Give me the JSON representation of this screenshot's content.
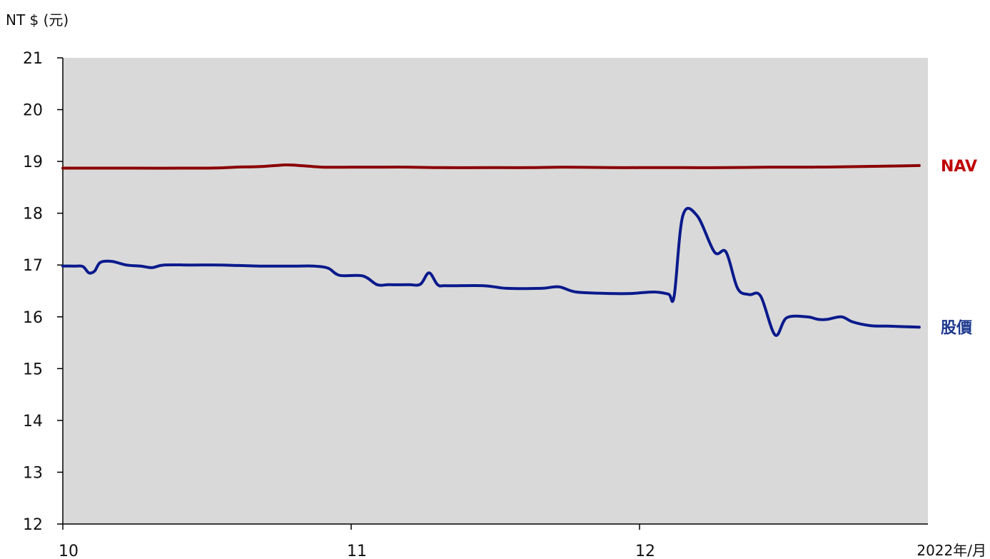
{
  "chart_data": {
    "type": "line",
    "y_unit_label": "NT $ (元)",
    "x_unit_label": "2022年/月",
    "ylim": [
      12,
      21
    ],
    "y_ticks": [
      "21",
      "20",
      "19",
      "18",
      "17",
      "16",
      "15",
      "14",
      "13",
      "12"
    ],
    "x_ticks": [
      {
        "label": "10",
        "month_pos": 0
      },
      {
        "label": "11",
        "month_pos": 1
      },
      {
        "label": "12",
        "month_pos": 2
      }
    ],
    "x_range": [
      0,
      3
    ],
    "grid": false,
    "plot_background": "#d9d9d9",
    "series": [
      {
        "name": "NAV",
        "color": "#8b0000",
        "label_color": "#c00000",
        "points": [
          [
            0.0,
            18.87
          ],
          [
            0.25,
            18.87
          ],
          [
            0.5,
            18.87
          ],
          [
            0.6,
            18.89
          ],
          [
            0.68,
            18.9
          ],
          [
            0.76,
            18.93
          ],
          [
            0.8,
            18.93
          ],
          [
            0.9,
            18.89
          ],
          [
            1.0,
            18.89
          ],
          [
            1.12,
            18.89
          ],
          [
            1.2,
            18.89
          ],
          [
            1.3,
            18.88
          ],
          [
            1.5,
            18.88
          ],
          [
            1.62,
            18.88
          ],
          [
            1.74,
            18.89
          ],
          [
            1.9,
            18.88
          ],
          [
            2.0,
            18.88
          ],
          [
            2.15,
            18.88
          ],
          [
            2.3,
            18.88
          ],
          [
            2.45,
            18.89
          ],
          [
            2.6,
            18.89
          ],
          [
            2.75,
            18.9
          ],
          [
            2.97,
            18.92
          ]
        ]
      },
      {
        "name": "股價",
        "color": "#0a1a8c",
        "label_color": "#1f3a8f",
        "points": [
          [
            0.0,
            16.98
          ],
          [
            0.04,
            16.98
          ],
          [
            0.07,
            16.97
          ],
          [
            0.09,
            16.85
          ],
          [
            0.11,
            16.88
          ],
          [
            0.13,
            17.05
          ],
          [
            0.17,
            17.07
          ],
          [
            0.22,
            17.0
          ],
          [
            0.27,
            16.98
          ],
          [
            0.31,
            16.95
          ],
          [
            0.35,
            17.0
          ],
          [
            0.45,
            17.0
          ],
          [
            0.55,
            17.0
          ],
          [
            0.68,
            16.98
          ],
          [
            0.8,
            16.98
          ],
          [
            0.87,
            16.98
          ],
          [
            0.92,
            16.94
          ],
          [
            0.96,
            16.8
          ],
          [
            1.04,
            16.79
          ],
          [
            1.09,
            16.62
          ],
          [
            1.13,
            16.62
          ],
          [
            1.2,
            16.62
          ],
          [
            1.24,
            16.63
          ],
          [
            1.27,
            16.85
          ],
          [
            1.3,
            16.62
          ],
          [
            1.33,
            16.6
          ],
          [
            1.46,
            16.6
          ],
          [
            1.54,
            16.55
          ],
          [
            1.66,
            16.55
          ],
          [
            1.72,
            16.58
          ],
          [
            1.78,
            16.48
          ],
          [
            1.9,
            16.45
          ],
          [
            1.97,
            16.45
          ],
          [
            2.05,
            16.48
          ],
          [
            2.1,
            16.44
          ],
          [
            2.12,
            16.4
          ],
          [
            2.15,
            17.95
          ],
          [
            2.2,
            17.95
          ],
          [
            2.26,
            17.25
          ],
          [
            2.3,
            17.25
          ],
          [
            2.34,
            16.55
          ],
          [
            2.38,
            16.43
          ],
          [
            2.42,
            16.4
          ],
          [
            2.47,
            15.65
          ],
          [
            2.51,
            15.98
          ],
          [
            2.58,
            16.0
          ],
          [
            2.62,
            15.95
          ],
          [
            2.65,
            15.95
          ],
          [
            2.7,
            16.0
          ],
          [
            2.74,
            15.9
          ],
          [
            2.8,
            15.83
          ],
          [
            2.86,
            15.82
          ],
          [
            2.97,
            15.8
          ]
        ]
      }
    ]
  }
}
